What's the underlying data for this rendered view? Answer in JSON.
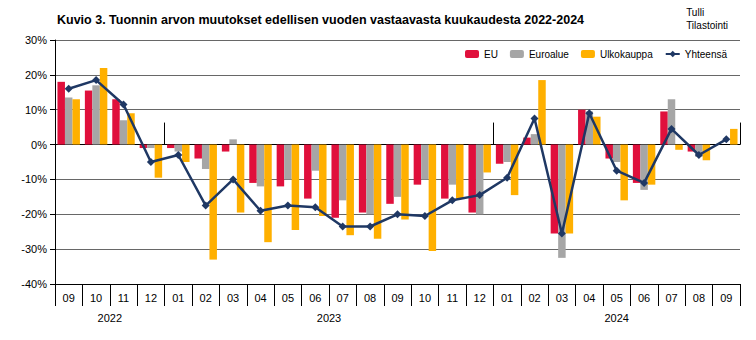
{
  "chart_data": {
    "type": "bar",
    "title": "Kuvio 3. Tuonnin arvon muutokset edellisen vuoden vastaavasta kuukaudesta 2022-2024",
    "source": [
      "Tulli",
      "Tilastointi"
    ],
    "categories": [
      "09",
      "10",
      "11",
      "12",
      "01",
      "02",
      "03",
      "04",
      "05",
      "06",
      "07",
      "08",
      "09",
      "10",
      "11",
      "12",
      "01",
      "02",
      "03",
      "04",
      "05",
      "06",
      "07",
      "08",
      "09"
    ],
    "year_groups": [
      {
        "label": "2022",
        "months": 4
      },
      {
        "label": "2023",
        "months": 12
      },
      {
        "label": "2024",
        "months": 9
      }
    ],
    "series": [
      {
        "name": "EU",
        "type": "bar",
        "color": "#e0103c",
        "values": [
          18,
          15.5,
          13,
          -1,
          -1,
          -4,
          -2,
          -11,
          -12,
          -15.5,
          -21,
          -19.5,
          -17,
          -11.5,
          -15.5,
          -19.5,
          -5.5,
          2,
          -25.5,
          10,
          -4,
          -11,
          9.5,
          -2,
          0
        ]
      },
      {
        "name": "Euroalue",
        "type": "bar",
        "color": "#a6a6a6",
        "values": [
          13.5,
          17,
          7,
          -1,
          -2,
          -7,
          1.5,
          -12,
          -10,
          -7.5,
          -16,
          -20,
          -15,
          -10,
          -11.5,
          -20,
          -5,
          3,
          -32.5,
          9.5,
          -5,
          -13,
          13,
          -3.5,
          0
        ]
      },
      {
        "name": "Ulkokauppa",
        "type": "bar",
        "color": "#ffb000",
        "values": [
          13,
          22,
          9,
          -9.5,
          -5,
          -33,
          -19.5,
          -28,
          -24.5,
          -20.5,
          -26,
          -27,
          -21.5,
          -30.5,
          -15.5,
          -8,
          -14.5,
          18.5,
          -25.5,
          8,
          -16,
          -11.5,
          -1.5,
          -4.5,
          4.5
        ]
      },
      {
        "name": "Yhteensä",
        "type": "line",
        "color": "#1f3864",
        "marker": "diamond",
        "values": [
          16,
          18.5,
          11.5,
          -5,
          -3,
          -17.5,
          -10,
          -19,
          -17.5,
          -18,
          -23.5,
          -23.5,
          -20,
          -20.5,
          -16,
          -14.5,
          -9.5,
          7.5,
          -25.5,
          9,
          -7.5,
          -11,
          4.5,
          -3,
          1.5
        ]
      }
    ],
    "ylim": [
      -40,
      30
    ],
    "yticks": [
      {
        "value": -40,
        "label": "-40%"
      },
      {
        "value": -30,
        "label": "-30%"
      },
      {
        "value": -20,
        "label": "-20%"
      },
      {
        "value": -10,
        "label": "-10%"
      },
      {
        "value": 0,
        "label": "0%"
      },
      {
        "value": 10,
        "label": "10%"
      },
      {
        "value": 20,
        "label": "20%"
      },
      {
        "value": 30,
        "label": "30%"
      }
    ],
    "grid": true,
    "legend": "upper right"
  }
}
